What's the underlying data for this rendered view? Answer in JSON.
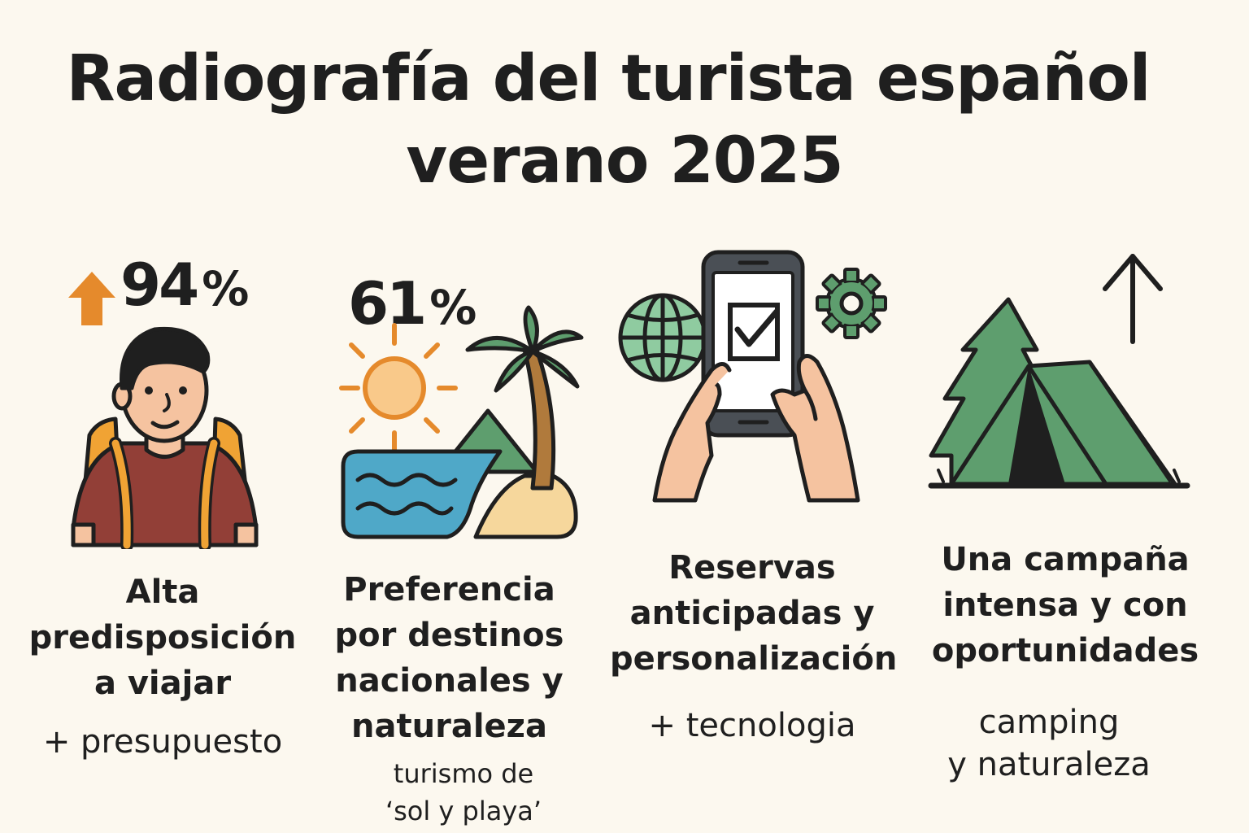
{
  "title": {
    "line1": "Radiografía del turista español",
    "line2": "verano 2025"
  },
  "columns": [
    {
      "stat": "94",
      "stat_unit": "%",
      "heading": "Alta\npredisposición\na viajar",
      "note": "+ presupuesto",
      "icon": "traveler-backpack-icon"
    },
    {
      "stat": "61",
      "stat_unit": "%",
      "heading": "Preferencia\npor destinos\nnacionales y\nnaturaleza",
      "note": "turismo de\n‘sol y playa’",
      "icon": "beach-sun-palm-icon"
    },
    {
      "heading": "Reservas\nanticipadas y\npersonalización",
      "note": "+ tecnologia",
      "icon": "smartphone-booking-icon"
    },
    {
      "heading": "Una campaña\nintensa y con\noportunidades",
      "note": "camping\ny naturaleza",
      "icon": "camping-tent-icon"
    }
  ],
  "colors": {
    "background": "#fcf8ef",
    "orange": "#e58a2c",
    "green": "#5e9e6e",
    "light_green": "#8fcba0",
    "sea": "#4fa8c8",
    "sand": "#f6d79c",
    "skin": "#f5c3a0",
    "shirt": "#923f37",
    "text": "#1f1f1f"
  }
}
